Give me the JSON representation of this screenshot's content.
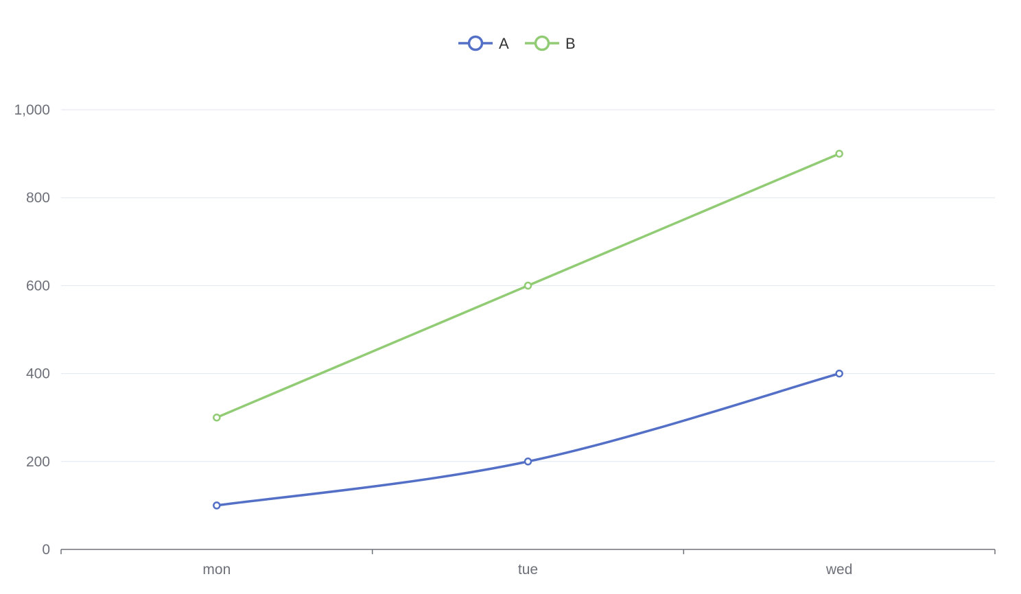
{
  "chart_data": {
    "type": "line",
    "categories": [
      "mon",
      "tue",
      "wed"
    ],
    "series": [
      {
        "name": "A",
        "values": [
          100,
          200,
          400
        ],
        "color": "#5470c6",
        "smooth": true
      },
      {
        "name": "B",
        "values": [
          300,
          600,
          900
        ],
        "color": "#91cc75",
        "smooth": false
      }
    ],
    "ylim": [
      0,
      1000
    ],
    "yticks": [
      0,
      200,
      400,
      600,
      800,
      1000
    ],
    "ytick_labels": [
      "0",
      "200",
      "400",
      "600",
      "800",
      "1,000"
    ],
    "grid": true,
    "legend": "top-center"
  }
}
